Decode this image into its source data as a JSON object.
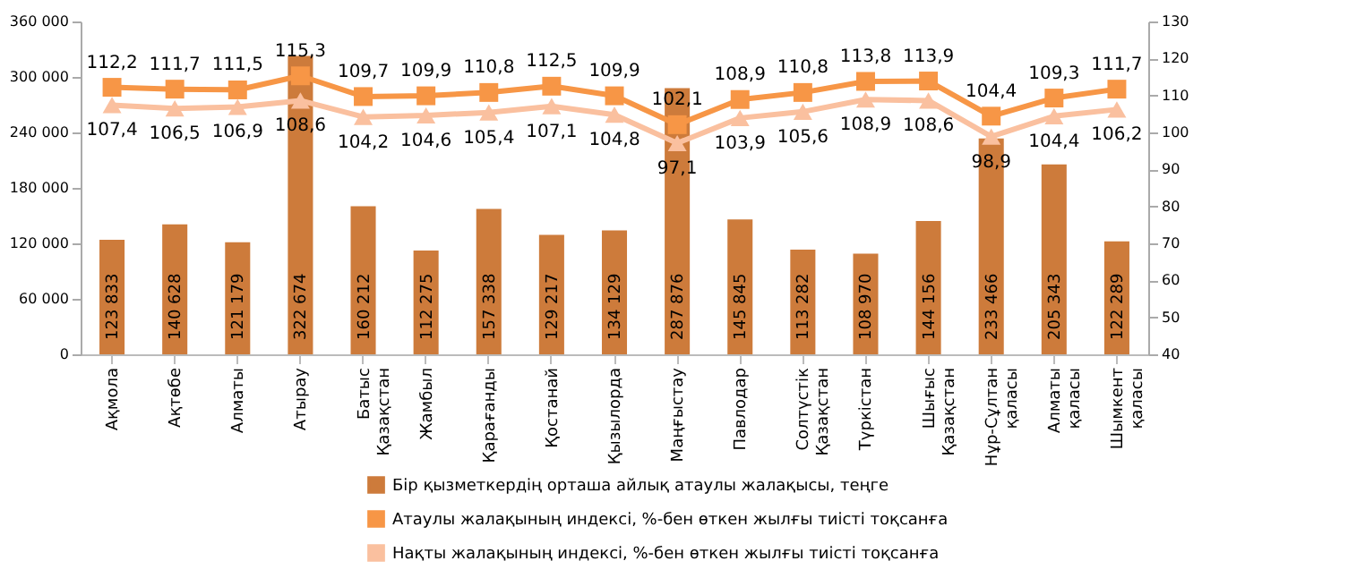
{
  "chart_data": {
    "type": "bar",
    "categories": [
      "Ақмола",
      "Ақтөбе",
      "Алматы",
      "Атырау",
      "Батыс Қазақстан",
      "Жамбыл",
      "Қарағанды",
      "Қостанай",
      "Қызылорда",
      "Маңғыстау",
      "Павлодар",
      "Солтүстік Қазақстан",
      "Түркістан",
      "Шығыс Қазақстан",
      "Нұр-Сұлтан қаласы",
      "Алматы қаласы",
      "Шымкент қаласы"
    ],
    "series": [
      {
        "name": "Бір қызметкердің орташа айлық атаулы жалақысы, теңге",
        "color": "#cd7b3b",
        "values": [
          123833,
          140628,
          121179,
          322674,
          160212,
          112275,
          157338,
          129217,
          134129,
          287876,
          145845,
          113282,
          108970,
          144156,
          233466,
          205343,
          122289
        ],
        "value_labels": [
          "123 833",
          "140 628",
          "121 179",
          "322 674",
          "160 212",
          "112 275",
          "157 338",
          "129 217",
          "134 129",
          "287 876",
          "145 845",
          "113 282",
          "108 970",
          "144 156",
          "233 466",
          "205 343",
          "122 289"
        ]
      },
      {
        "name": "Атаулы жалақының индексі, %-бен өткен жылғы тиісті тоқсанға",
        "type": "line",
        "axis": "y2",
        "marker": "square",
        "color": "#f79646",
        "values": [
          112.2,
          111.7,
          111.5,
          115.3,
          109.7,
          109.9,
          110.8,
          112.5,
          109.9,
          102.1,
          108.9,
          110.8,
          113.8,
          113.9,
          104.4,
          109.3,
          111.7
        ],
        "value_labels": [
          "112,2",
          "111,7",
          "111,5",
          "115,3",
          "109,7",
          "109,9",
          "110,8",
          "112,5",
          "109,9",
          "102,1",
          "108,9",
          "110,8",
          "113,8",
          "113,9",
          "104,4",
          "109,3",
          "111,7"
        ]
      },
      {
        "name": "Нақты жалақының индексі, %-бен өткен жылғы тиісті тоқсанға",
        "type": "line",
        "axis": "y2",
        "marker": "triangle",
        "color": "#fac09f",
        "values": [
          107.4,
          106.5,
          106.9,
          108.6,
          104.2,
          104.6,
          105.4,
          107.1,
          104.8,
          97.1,
          103.9,
          105.6,
          108.9,
          108.6,
          98.9,
          104.4,
          106.2
        ],
        "value_labels": [
          "107,4",
          "106,5",
          "106,9",
          "108,6",
          "104,2",
          "104,6",
          "105,4",
          "107,1",
          "104,8",
          "97,1",
          "103,9",
          "105,6",
          "108,9",
          "108,6",
          "98,9",
          "104,4",
          "106,2"
        ]
      }
    ],
    "ylim": [
      0,
      360000
    ],
    "yticks": [
      0,
      {
        "value": 60000,
        "label": "60 000"
      },
      {
        "value": 120000,
        "label": "120 000"
      },
      {
        "value": 180000,
        "label": "180 000"
      },
      {
        "value": 240000,
        "label": "240 000"
      },
      {
        "value": 300000,
        "label": "300 000"
      },
      {
        "value": 360000,
        "label": "360 000"
      }
    ],
    "y2lim": [
      40,
      130
    ],
    "y2ticks": [
      40,
      50,
      60,
      70,
      80,
      90,
      100,
      110,
      120,
      130
    ],
    "legend": "bottom",
    "grid": false
  }
}
